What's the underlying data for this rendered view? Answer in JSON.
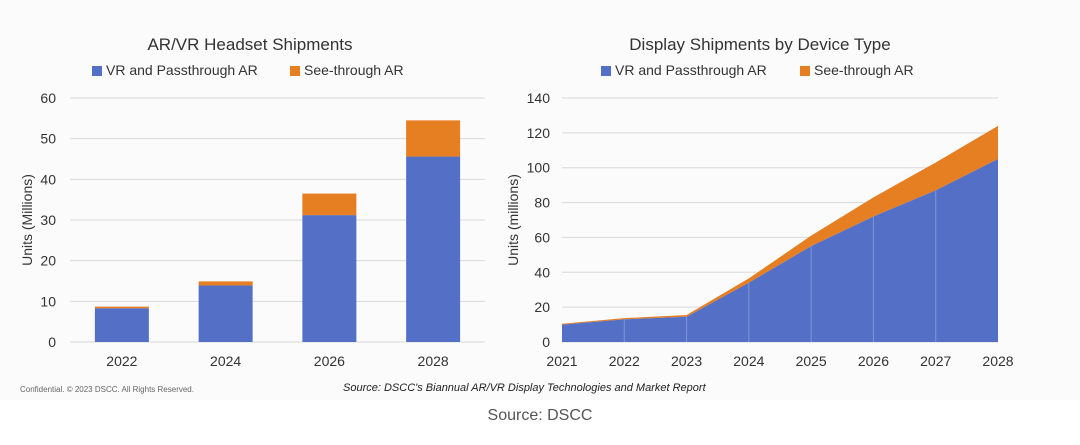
{
  "colors": {
    "vr": "#5470C6",
    "ar": "#E67E22",
    "grid": "#d9d9d9",
    "text": "#333333"
  },
  "confidential": "Confidential. © 2023 DSCC. All Rights Reserved.",
  "report_source": "Source: DSCC's Biannual AR/VR Display Technologies and Market Report",
  "caption": "Source: DSCC",
  "chart_data": [
    {
      "type": "bar",
      "stacked": true,
      "title": "AR/VR Headset Shipments",
      "ylabel": "Units (Millions)",
      "xlabel": "",
      "categories": [
        "2022",
        "2024",
        "2026",
        "2028"
      ],
      "series": [
        {
          "name": "VR and Passthrough AR",
          "values": [
            8.3,
            13.9,
            31.2,
            45.6
          ]
        },
        {
          "name": "See-through AR",
          "values": [
            0.4,
            1.0,
            5.3,
            8.9
          ]
        }
      ],
      "ylim": [
        0,
        60
      ],
      "yticks": [
        0,
        10,
        20,
        30,
        40,
        50,
        60
      ],
      "legend": "top"
    },
    {
      "type": "area",
      "stacked": true,
      "title": "Display Shipments by Device Type",
      "ylabel": "Units (millions)",
      "xlabel": "",
      "categories": [
        "2021",
        "2022",
        "2023",
        "2024",
        "2025",
        "2026",
        "2027",
        "2028"
      ],
      "series": [
        {
          "name": "VR and Passthrough AR",
          "values": [
            10,
            13,
            14.5,
            34,
            55,
            72,
            87,
            105
          ]
        },
        {
          "name": "See-through AR",
          "values": [
            0.5,
            0.7,
            1,
            2.5,
            6,
            11,
            16,
            19
          ]
        }
      ],
      "ylim": [
        0,
        140
      ],
      "yticks": [
        0,
        20,
        40,
        60,
        80,
        100,
        120,
        140
      ],
      "legend": "top"
    }
  ]
}
